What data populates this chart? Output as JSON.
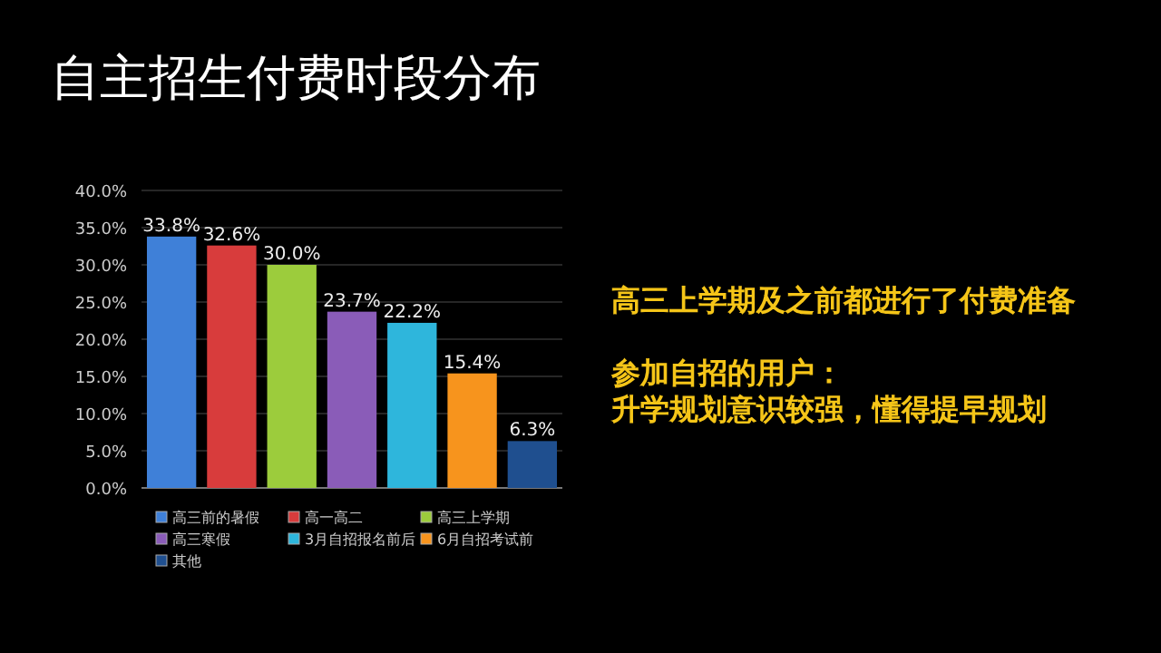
{
  "chart_data": {
    "type": "bar",
    "title": "自主招生付费时段分布",
    "categories": [
      null
    ],
    "series": [
      {
        "name": "高三前的暑假",
        "color": "#3f80d8",
        "values": [
          33.8
        ],
        "value_labels": [
          "33.8%"
        ]
      },
      {
        "name": "高一高二",
        "color": "#d83c3c",
        "values": [
          32.6
        ],
        "value_labels": [
          "32.6%"
        ]
      },
      {
        "name": "高三上学期",
        "color": "#9ccc3c",
        "values": [
          30.0
        ],
        "value_labels": [
          "30.0%"
        ]
      },
      {
        "name": "高三寒假",
        "color": "#8a5cb8",
        "values": [
          23.7
        ],
        "value_labels": [
          "23.7%"
        ]
      },
      {
        "name": "3月自招报名前后",
        "color": "#2eb6dc",
        "values": [
          22.2
        ],
        "value_labels": [
          "22.2%"
        ]
      },
      {
        "name": "6月自招考试前",
        "color": "#f7941d",
        "values": [
          15.4
        ],
        "value_labels": [
          "15.4%"
        ]
      },
      {
        "name": "其他",
        "color": "#1f4f8f",
        "values": [
          6.3
        ],
        "value_labels": [
          "6.3%"
        ]
      }
    ],
    "ylim": [
      0,
      40
    ],
    "yticks": [
      {
        "value": 0,
        "label": "0.0%"
      },
      {
        "value": 5,
        "label": "5.0%"
      },
      {
        "value": 10,
        "label": "10.0%"
      },
      {
        "value": 15,
        "label": "15.0%"
      },
      {
        "value": 20,
        "label": "20.0%"
      },
      {
        "value": 25,
        "label": "25.0%"
      },
      {
        "value": 30,
        "label": "30.0%"
      },
      {
        "value": 35,
        "label": "35.0%"
      },
      {
        "value": 40,
        "label": "40.0%"
      }
    ],
    "grid": "y",
    "legend": "bottom",
    "annotations": [
      "高三上学期及之前都进行了付费准备",
      "参加自招的用户：",
      "升学规划意识较强，懂得提早规划"
    ]
  }
}
